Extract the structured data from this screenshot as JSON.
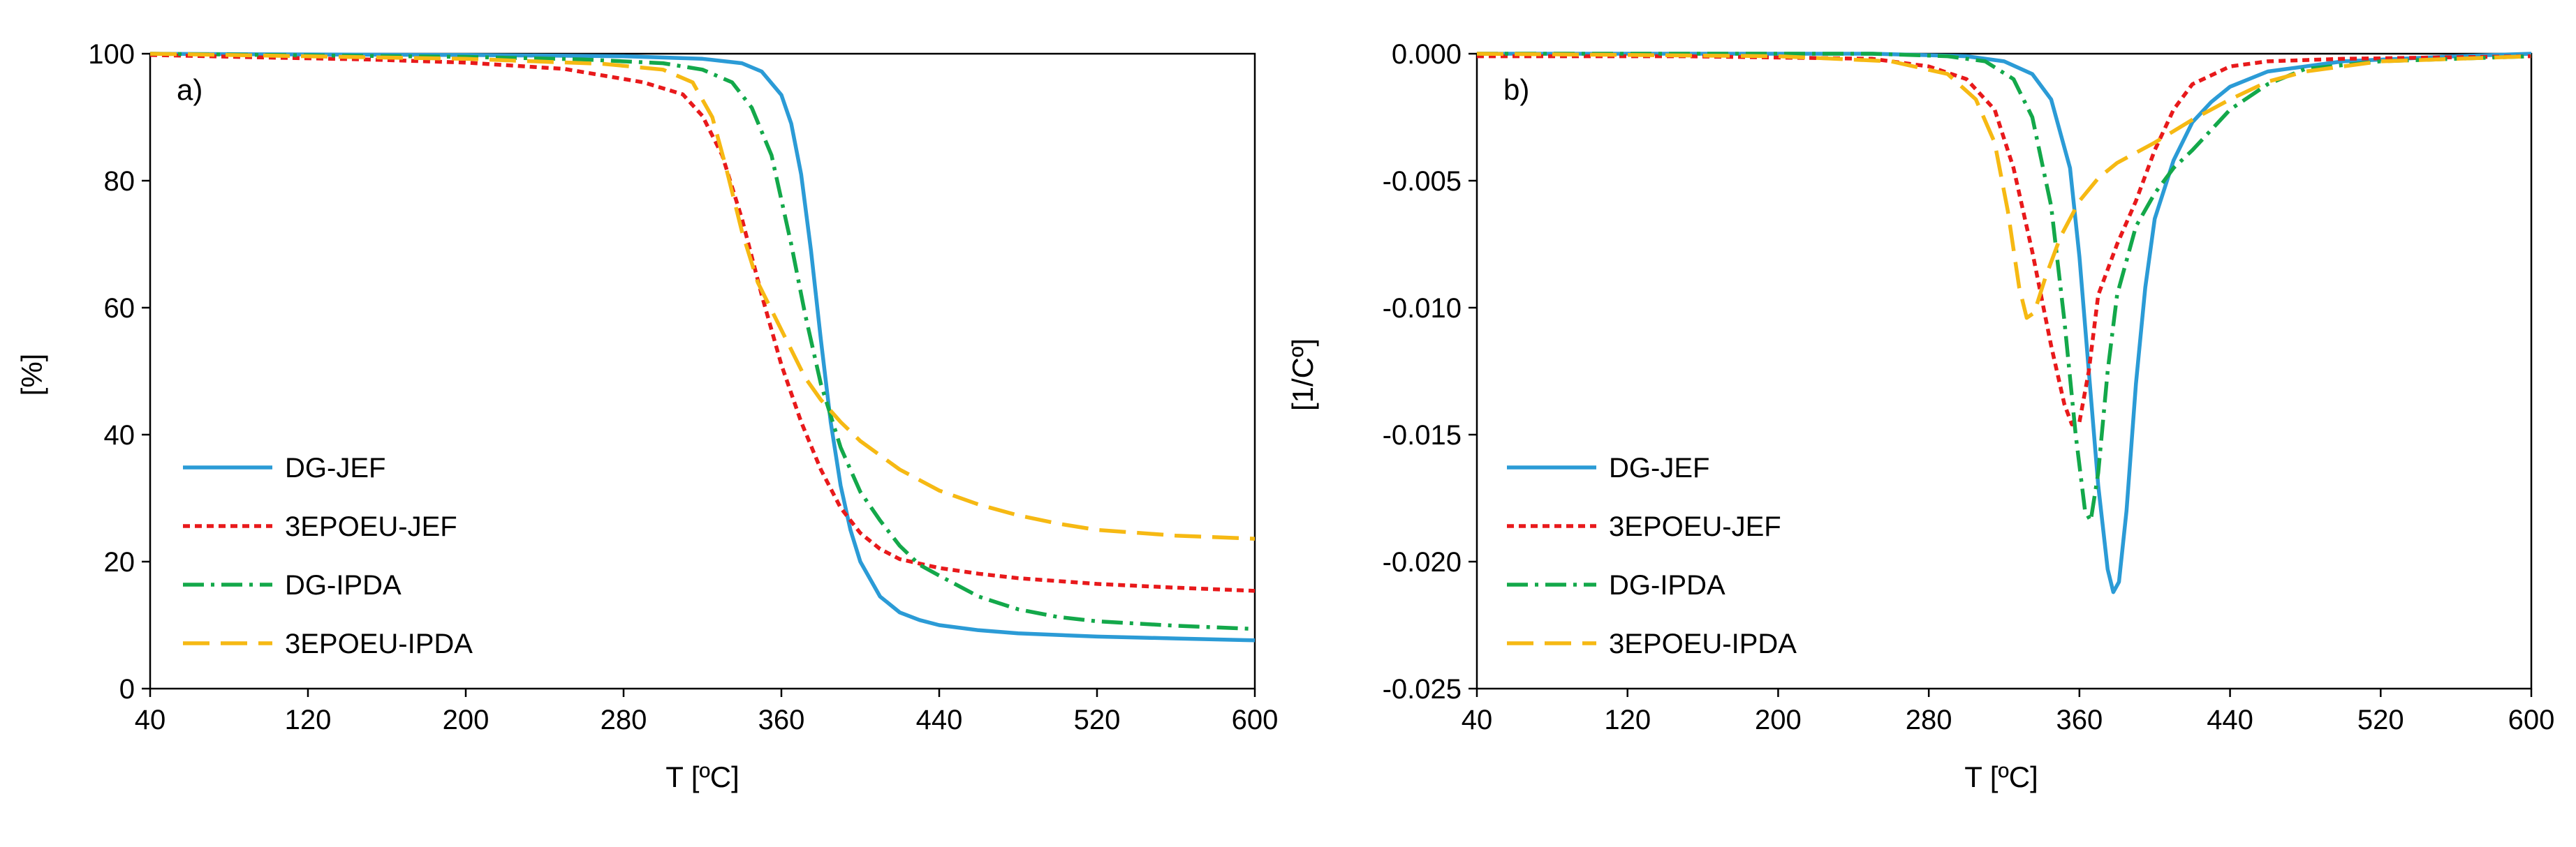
{
  "colors": {
    "dg_jef": "#2b9bd6",
    "epoeu_jef": "#e8191b",
    "dg_ipda": "#13a84a",
    "epoeu_ipda": "#f6b913"
  },
  "chart_data": [
    {
      "type": "line",
      "panel_label": "a)",
      "title": "",
      "xlabel": "T [ºC]",
      "ylabel": "[%]",
      "xlim": [
        40,
        600
      ],
      "ylim": [
        0,
        100
      ],
      "xticks": [
        40,
        120,
        200,
        280,
        360,
        440,
        520,
        600
      ],
      "xtick_labels": [
        "40",
        "120",
        "200",
        "280",
        "360",
        "440",
        "520",
        "600"
      ],
      "yticks": [
        0,
        20,
        40,
        60,
        80,
        100
      ],
      "ytick_labels": [
        "0",
        "20",
        "40",
        "60",
        "80",
        "100"
      ],
      "legend_position": "bottom-left",
      "series": [
        {
          "name": "DG-JEF",
          "color_key": "dg_jef",
          "dash": "solid",
          "points": [
            [
              40,
              100
            ],
            [
              100,
              99.9
            ],
            [
              200,
              99.8
            ],
            [
              280,
              99.6
            ],
            [
              320,
              99.2
            ],
            [
              340,
              98.5
            ],
            [
              350,
              97.2
            ],
            [
              360,
              93.5
            ],
            [
              365,
              89
            ],
            [
              370,
              81
            ],
            [
              375,
              69
            ],
            [
              380,
              55
            ],
            [
              385,
              42
            ],
            [
              390,
              32
            ],
            [
              395,
              25
            ],
            [
              400,
              20
            ],
            [
              410,
              14.5
            ],
            [
              420,
              12
            ],
            [
              430,
              10.8
            ],
            [
              440,
              10
            ],
            [
              460,
              9.2
            ],
            [
              480,
              8.7
            ],
            [
              520,
              8.2
            ],
            [
              560,
              7.9
            ],
            [
              600,
              7.6
            ]
          ]
        },
        {
          "name": "3EPOEU-JEF",
          "color_key": "epoeu_jef",
          "dash": "short",
          "points": [
            [
              40,
              99.8
            ],
            [
              100,
              99.4
            ],
            [
              150,
              99.1
            ],
            [
              200,
              98.6
            ],
            [
              250,
              97.6
            ],
            [
              290,
              95.5
            ],
            [
              310,
              93.6
            ],
            [
              320,
              90.2
            ],
            [
              330,
              84
            ],
            [
              340,
              74
            ],
            [
              350,
              62
            ],
            [
              360,
              51
            ],
            [
              370,
              42
            ],
            [
              380,
              34.5
            ],
            [
              390,
              28.5
            ],
            [
              400,
              24.5
            ],
            [
              410,
              22
            ],
            [
              420,
              20.4
            ],
            [
              440,
              19
            ],
            [
              460,
              18.1
            ],
            [
              480,
              17.4
            ],
            [
              520,
              16.5
            ],
            [
              560,
              15.9
            ],
            [
              600,
              15.4
            ]
          ]
        },
        {
          "name": "DG-IPDA",
          "color_key": "dg_ipda",
          "dash": "dashdot",
          "points": [
            [
              40,
              100
            ],
            [
              100,
              99.8
            ],
            [
              200,
              99.5
            ],
            [
              260,
              99.1
            ],
            [
              300,
              98.5
            ],
            [
              320,
              97.5
            ],
            [
              335,
              95.5
            ],
            [
              345,
              91.5
            ],
            [
              355,
              84
            ],
            [
              365,
              70
            ],
            [
              372,
              59
            ],
            [
              380,
              48
            ],
            [
              390,
              38
            ],
            [
              400,
              31
            ],
            [
              410,
              26.5
            ],
            [
              420,
              22.5
            ],
            [
              430,
              19.5
            ],
            [
              440,
              17.8
            ],
            [
              460,
              14.5
            ],
            [
              480,
              12.5
            ],
            [
              500,
              11.3
            ],
            [
              520,
              10.6
            ],
            [
              560,
              9.9
            ],
            [
              600,
              9.4
            ]
          ]
        },
        {
          "name": "3EPOEU-IPDA",
          "color_key": "epoeu_ipda",
          "dash": "long",
          "points": [
            [
              40,
              100
            ],
            [
              100,
              99.7
            ],
            [
              200,
              99.2
            ],
            [
              270,
              98.4
            ],
            [
              300,
              97.5
            ],
            [
              315,
              95.5
            ],
            [
              325,
              90
            ],
            [
              332,
              82
            ],
            [
              340,
              72
            ],
            [
              348,
              64
            ],
            [
              356,
              59
            ],
            [
              364,
              54
            ],
            [
              372,
              49
            ],
            [
              380,
              45.5
            ],
            [
              390,
              42
            ],
            [
              400,
              39
            ],
            [
              420,
              34.5
            ],
            [
              440,
              31.2
            ],
            [
              460,
              29
            ],
            [
              480,
              27.3
            ],
            [
              500,
              26
            ],
            [
              520,
              25
            ],
            [
              560,
              24.1
            ],
            [
              600,
              23.6
            ]
          ]
        }
      ]
    },
    {
      "type": "line",
      "panel_label": "b)",
      "title": "",
      "xlabel": "T [ºC]",
      "ylabel": "[1/Cº]",
      "xlim": [
        40,
        600
      ],
      "ylim": [
        -0.025,
        0
      ],
      "xticks": [
        40,
        120,
        200,
        280,
        360,
        440,
        520,
        600
      ],
      "xtick_labels": [
        "40",
        "120",
        "200",
        "280",
        "360",
        "440",
        "520",
        "600"
      ],
      "yticks": [
        -0.025,
        -0.02,
        -0.015,
        -0.01,
        -0.005,
        0
      ],
      "ytick_labels": [
        "-0.025",
        "-0.020",
        "-0.015",
        "-0.010",
        "-0.005",
        "0.000"
      ],
      "legend_position": "bottom-left",
      "series": [
        {
          "name": "DG-JEF",
          "color_key": "dg_jef",
          "dash": "solid",
          "points": [
            [
              40,
              0
            ],
            [
              250,
              0
            ],
            [
              300,
              -0.0001
            ],
            [
              320,
              -0.0003
            ],
            [
              335,
              -0.0008
            ],
            [
              345,
              -0.0018
            ],
            [
              355,
              -0.0045
            ],
            [
              360,
              -0.008
            ],
            [
              365,
              -0.0125
            ],
            [
              370,
              -0.017
            ],
            [
              375,
              -0.0203
            ],
            [
              378,
              -0.0212
            ],
            [
              381,
              -0.0208
            ],
            [
              385,
              -0.018
            ],
            [
              390,
              -0.013
            ],
            [
              395,
              -0.0092
            ],
            [
              400,
              -0.0065
            ],
            [
              410,
              -0.0042
            ],
            [
              420,
              -0.0027
            ],
            [
              430,
              -0.0019
            ],
            [
              440,
              -0.0013
            ],
            [
              460,
              -0.0007
            ],
            [
              500,
              -0.0003
            ],
            [
              560,
              -0.0001
            ],
            [
              600,
              0
            ]
          ]
        },
        {
          "name": "3EPOEU-JEF",
          "color_key": "epoeu_jef",
          "dash": "short",
          "points": [
            [
              40,
              -0.0001
            ],
            [
              150,
              -0.0001
            ],
            [
              250,
              -0.0002
            ],
            [
              280,
              -0.0005
            ],
            [
              300,
              -0.001
            ],
            [
              315,
              -0.0022
            ],
            [
              325,
              -0.0045
            ],
            [
              335,
              -0.0078
            ],
            [
              345,
              -0.0115
            ],
            [
              352,
              -0.0138
            ],
            [
              356,
              -0.0146
            ],
            [
              360,
              -0.0145
            ],
            [
              365,
              -0.0125
            ],
            [
              370,
              -0.0095
            ],
            [
              380,
              -0.0075
            ],
            [
              390,
              -0.0058
            ],
            [
              400,
              -0.0038
            ],
            [
              410,
              -0.0022
            ],
            [
              420,
              -0.0012
            ],
            [
              440,
              -0.0005
            ],
            [
              460,
              -0.0003
            ],
            [
              500,
              -0.0002
            ],
            [
              600,
              -0.0001
            ]
          ]
        },
        {
          "name": "DG-IPDA",
          "color_key": "dg_ipda",
          "dash": "dashdot",
          "points": [
            [
              40,
              0
            ],
            [
              250,
              0
            ],
            [
              290,
              -0.0001
            ],
            [
              310,
              -0.0003
            ],
            [
              325,
              -0.001
            ],
            [
              335,
              -0.0025
            ],
            [
              345,
              -0.006
            ],
            [
              352,
              -0.0105
            ],
            [
              358,
              -0.015
            ],
            [
              363,
              -0.018
            ],
            [
              366,
              -0.0184
            ],
            [
              370,
              -0.0165
            ],
            [
              375,
              -0.0125
            ],
            [
              380,
              -0.0095
            ],
            [
              390,
              -0.0068
            ],
            [
              400,
              -0.0055
            ],
            [
              410,
              -0.0045
            ],
            [
              420,
              -0.0038
            ],
            [
              430,
              -0.003
            ],
            [
              440,
              -0.0022
            ],
            [
              460,
              -0.0012
            ],
            [
              480,
              -0.0006
            ],
            [
              520,
              -0.0003
            ],
            [
              600,
              -0.0001
            ]
          ]
        },
        {
          "name": "3EPOEU-IPDA",
          "color_key": "epoeu_ipda",
          "dash": "long",
          "points": [
            [
              40,
              0
            ],
            [
              200,
              -0.0001
            ],
            [
              260,
              -0.0003
            ],
            [
              290,
              -0.0008
            ],
            [
              305,
              -0.0018
            ],
            [
              315,
              -0.0035
            ],
            [
              322,
              -0.0062
            ],
            [
              328,
              -0.0092
            ],
            [
              332,
              -0.0104
            ],
            [
              336,
              -0.0102
            ],
            [
              342,
              -0.0088
            ],
            [
              350,
              -0.0072
            ],
            [
              360,
              -0.0058
            ],
            [
              370,
              -0.0049
            ],
            [
              380,
              -0.0043
            ],
            [
              400,
              -0.0035
            ],
            [
              420,
              -0.0026
            ],
            [
              440,
              -0.0018
            ],
            [
              460,
              -0.0011
            ],
            [
              480,
              -0.0007
            ],
            [
              520,
              -0.0003
            ],
            [
              560,
              -0.0002
            ],
            [
              600,
              -0.0001
            ]
          ]
        }
      ]
    }
  ]
}
